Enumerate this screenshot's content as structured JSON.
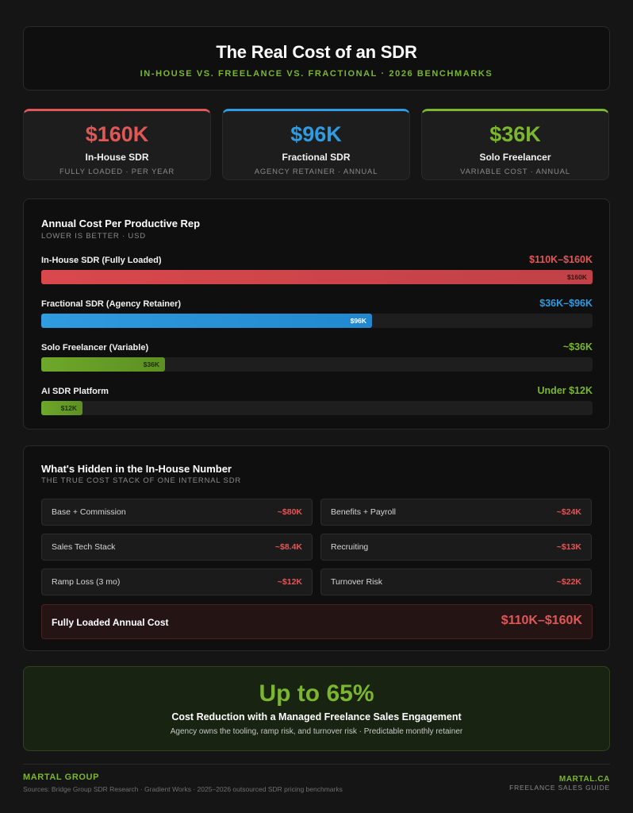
{
  "header": {
    "title": "The Real Cost of an SDR",
    "subtitle": "IN-HOUSE VS. FREELANCE VS. FRACTIONAL · 2026 BENCHMARKS"
  },
  "stats": [
    {
      "value": "$160K",
      "label": "In-House SDR",
      "note": "FULLY LOADED · PER YEAR",
      "color": "#e05757"
    },
    {
      "value": "$96K",
      "label": "Fractional SDR",
      "note": "AGENCY RETAINER · ANNUAL",
      "color": "#2f9be0"
    },
    {
      "value": "$36K",
      "label": "Solo Freelancer",
      "note": "VARIABLE COST · ANNUAL",
      "color": "#7bb62e"
    }
  ],
  "chart_data": {
    "type": "bar",
    "title": "Annual Cost Per Productive Rep",
    "subtitle": "LOWER IS BETTER · USD",
    "max": 160,
    "bars": [
      {
        "name": "In-House SDR (Fully Loaded)",
        "range": "$110K–$160K",
        "value": 160,
        "label": "$160K",
        "color": "#d9484c",
        "color2": "#c04148",
        "range_color": "#e05757",
        "label_color": "#3a1010"
      },
      {
        "name": "Fractional SDR (Agency Retainer)",
        "range": "$36K–$96K",
        "value": 96,
        "label": "$96K",
        "color": "#2f9be0",
        "color2": "#2188cf",
        "range_color": "#2f9be0",
        "label_color": "#ffffff"
      },
      {
        "name": "Solo Freelancer (Variable)",
        "range": "~$36K",
        "value": 36,
        "label": "$36K",
        "color": "#6ea82a",
        "color2": "#5c9022",
        "range_color": "#7bb62e",
        "label_color": "#1e2f08"
      },
      {
        "name": "AI SDR Platform",
        "range": "Under $12K",
        "value": 12,
        "label": "$12K",
        "color": "#6ea82a",
        "color2": "#5c9022",
        "range_color": "#7bb62e",
        "label_color": "#1e2f08"
      }
    ]
  },
  "hidden": {
    "title": "What's Hidden in the In-House Number",
    "subtitle": "THE TRUE COST STACK OF ONE INTERNAL SDR",
    "items": [
      {
        "name": "Base + Commission",
        "value": "~$80K"
      },
      {
        "name": "Benefits + Payroll",
        "value": "~$24K"
      },
      {
        "name": "Sales Tech Stack",
        "value": "~$8.4K"
      },
      {
        "name": "Recruiting",
        "value": "~$13K"
      },
      {
        "name": "Ramp Loss (3 mo)",
        "value": "~$12K"
      },
      {
        "name": "Turnover Risk",
        "value": "~$22K"
      }
    ],
    "total_label": "Fully Loaded Annual Cost",
    "total_value": "$110K–$160K"
  },
  "promo": {
    "big": "Up to 65%",
    "title": "Cost Reduction with a Managed Freelance Sales Engagement",
    "sub": "Agency owns the tooling, ramp risk, and turnover risk · Predictable monthly retainer"
  },
  "footer": {
    "brand": "MARTAL GROUP",
    "sources": "Sources: Bridge Group SDR Research · Gradient Works · 2025–2026 outsourced SDR pricing benchmarks",
    "site": "MARTAL.CA",
    "guide": "FREELANCE SALES GUIDE"
  }
}
